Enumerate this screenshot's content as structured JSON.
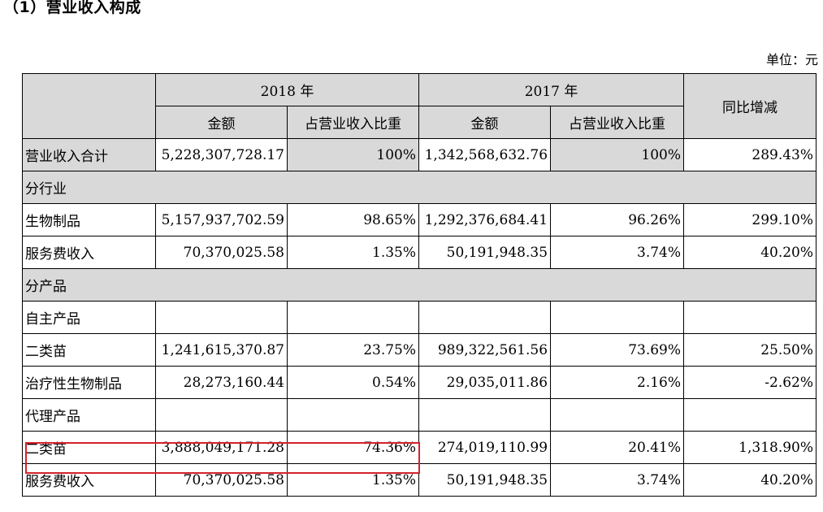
{
  "title": "（1）营业收入构成",
  "unit": "单位：元",
  "header": {
    "y2018": "2018 年",
    "y2017": "2017 年",
    "amount": "金额",
    "share": "占营业收入比重",
    "yoy": "同比增减"
  },
  "rows": [
    {
      "label": "营业收入合计",
      "a18": "5,228,307,728.17",
      "s18": "100%",
      "a17": "1,342,568,632.76",
      "s17": "100%",
      "yoy": "289.43%"
    },
    {
      "label": "分行业"
    },
    {
      "label": "生物制品",
      "a18": "5,157,937,702.59",
      "s18": "98.65%",
      "a17": "1,292,376,684.41",
      "s17": "96.26%",
      "yoy": "299.10%"
    },
    {
      "label": "服务费收入",
      "a18": "70,370,025.58",
      "s18": "1.35%",
      "a17": "50,191,948.35",
      "s17": "3.74%",
      "yoy": "40.20%"
    },
    {
      "label": "分产品"
    },
    {
      "label": "自主产品",
      "a18": "",
      "s18": "",
      "a17": "",
      "s17": "",
      "yoy": ""
    },
    {
      "label": "二类苗",
      "a18": "1,241,615,370.87",
      "s18": "23.75%",
      "a17": "989,322,561.56",
      "s17": "73.69%",
      "yoy": "25.50%"
    },
    {
      "label": "治疗性生物制品",
      "a18": "28,273,160.44",
      "s18": "0.54%",
      "a17": "29,035,011.86",
      "s17": "2.16%",
      "yoy": "-2.62%"
    },
    {
      "label": "代理产品",
      "a18": "",
      "s18": "",
      "a17": "",
      "s17": "",
      "yoy": ""
    },
    {
      "label": "二类苗",
      "a18": "3,888,049,171.28",
      "s18": "74.36%",
      "a17": "274,019,110.99",
      "s17": "20.41%",
      "yoy": "1,318.90%"
    },
    {
      "label": "服务费收入",
      "a18": "70,370,025.58",
      "s18": "1.35%",
      "a17": "50,191,948.35",
      "s17": "3.74%",
      "yoy": "40.20%"
    }
  ]
}
